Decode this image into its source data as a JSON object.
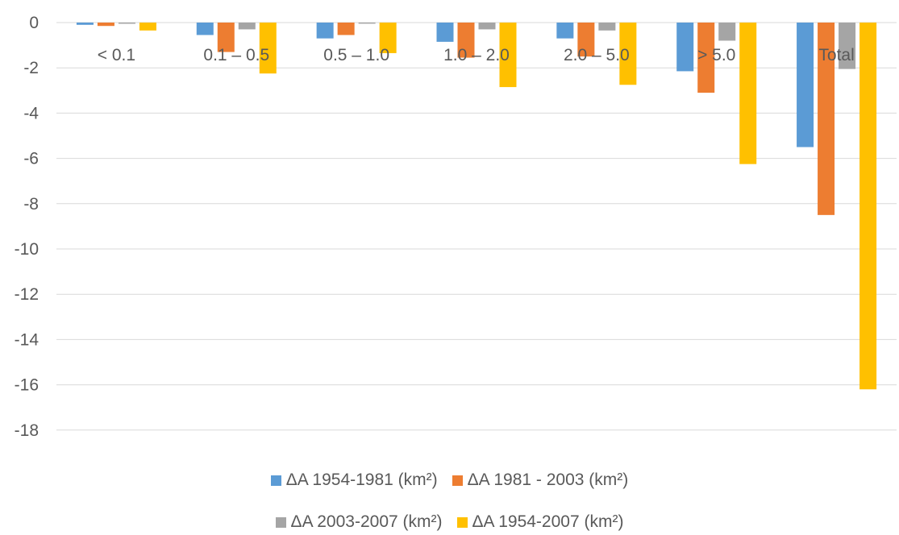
{
  "chart_data": {
    "type": "bar",
    "categories": [
      "< 0.1",
      "0.1 – 0.5",
      "0.5 – 1.0",
      "1.0 – 2.0",
      "2.0 – 5.0",
      "> 5.0",
      "Total"
    ],
    "series": [
      {
        "name": "ΔA  1954-1981 (km²)",
        "color": "#5b9bd5",
        "values": [
          -0.1,
          -0.55,
          -0.7,
          -0.85,
          -0.7,
          -2.15,
          -5.5
        ]
      },
      {
        "name": "ΔA  1981 - 2003 (km²)",
        "color": "#ed7d31",
        "values": [
          -0.15,
          -1.3,
          -0.55,
          -1.55,
          -1.5,
          -3.1,
          -8.5
        ]
      },
      {
        "name": "ΔA  2003-2007 (km²)",
        "color": "#a5a5a5",
        "values": [
          0.0,
          -0.3,
          -0.05,
          -0.3,
          -0.35,
          -0.8,
          -2.05
        ]
      },
      {
        "name": "ΔA  1954-2007 (km²)",
        "color": "#ffc000",
        "values": [
          -0.35,
          -2.25,
          -1.35,
          -2.85,
          -2.75,
          -6.25,
          -16.2
        ]
      }
    ],
    "yticks": [
      "0",
      "-2",
      "-4",
      "-6",
      "-8",
      "-10",
      "-12",
      "-14",
      "-16",
      "-18"
    ],
    "ylim": [
      -18,
      0
    ],
    "grid": true,
    "legend_position": "bottom"
  }
}
